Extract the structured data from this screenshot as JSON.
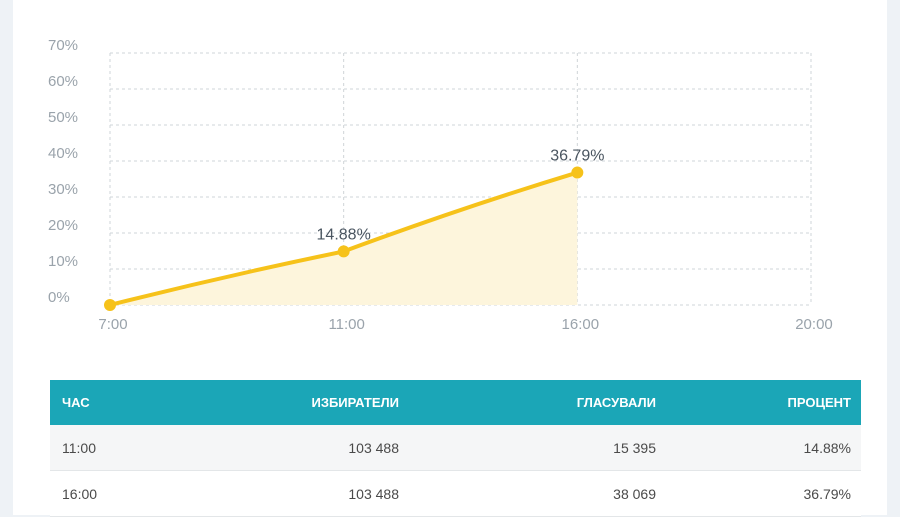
{
  "colors": {
    "line": "#f6c21a",
    "area": "#fdf5dc",
    "grid": "#cfd4d8",
    "header_bg": "#1ba6b7"
  },
  "chart_data": {
    "type": "line",
    "x_ticks": [
      "7:00",
      "11:00",
      "16:00",
      "20:00"
    ],
    "y_ticks": [
      "0%",
      "10%",
      "20%",
      "30%",
      "40%",
      "50%",
      "60%",
      "70%"
    ],
    "ylim": [
      0,
      70
    ],
    "grid": true,
    "series": [
      {
        "points": [
          {
            "x": "7:00",
            "y": 0,
            "label": ""
          },
          {
            "x": "11:00",
            "y": 14.88,
            "label": "14.88%"
          },
          {
            "x": "16:00",
            "y": 36.79,
            "label": "36.79%"
          }
        ]
      }
    ]
  },
  "table": {
    "headers": [
      "ЧАС",
      "ИЗБИРАТЕЛИ",
      "ГЛАСУВАЛИ",
      "ПРОЦЕНТ"
    ],
    "rows": [
      [
        "11:00",
        "103 488",
        "15 395",
        "14.88%"
      ],
      [
        "16:00",
        "103 488",
        "38 069",
        "36.79%"
      ]
    ]
  }
}
